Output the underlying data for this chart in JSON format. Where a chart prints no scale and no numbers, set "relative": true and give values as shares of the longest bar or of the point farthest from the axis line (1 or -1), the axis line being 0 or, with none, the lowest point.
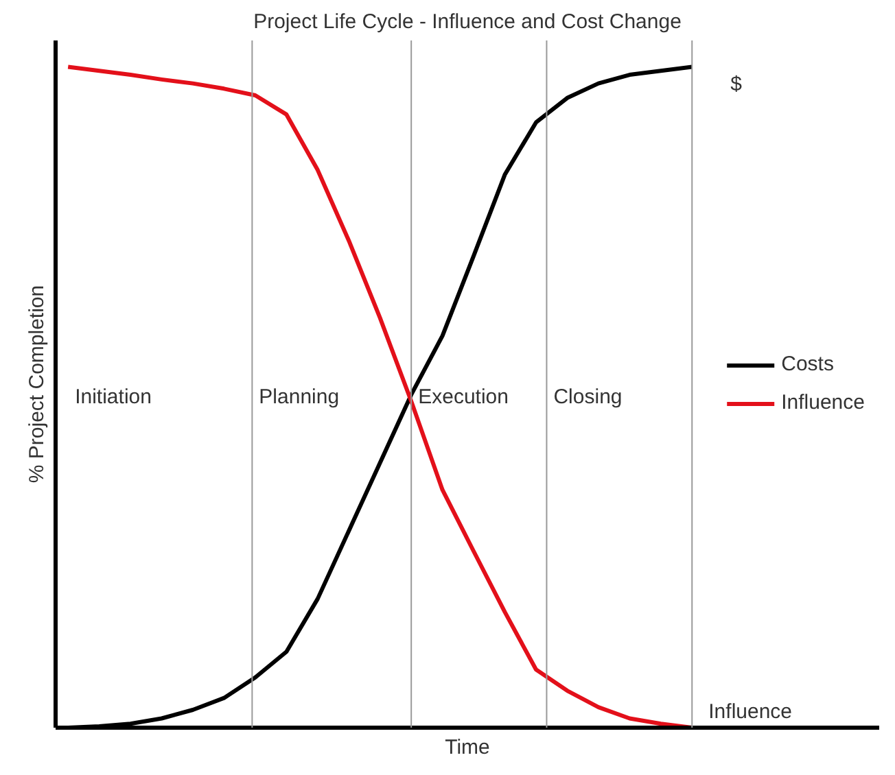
{
  "chart_data": {
    "type": "line",
    "title": "Project Life Cycle - Influence and Cost Change",
    "xlabel": "Time",
    "ylabel": "% Project Completion",
    "relative": true,
    "categories": [
      null,
      null,
      null,
      null,
      null,
      null,
      null,
      null,
      null,
      null,
      null,
      null,
      null,
      null,
      null,
      null,
      null,
      null,
      null,
      null,
      null
    ],
    "series": [
      {
        "name": "Costs",
        "color": "#000000",
        "values": [
          0,
          0.002,
          0.006,
          0.014,
          0.027,
          0.045,
          0.076,
          0.115,
          0.195,
          0.298,
          0.401,
          0.504,
          0.593,
          0.714,
          0.837,
          0.916,
          0.953,
          0.975,
          0.988,
          0.994,
          1.0
        ]
      },
      {
        "name": "Influence",
        "color": "#e3101a",
        "values": [
          1.0,
          0.994,
          0.988,
          0.981,
          0.975,
          0.967,
          0.957,
          0.928,
          0.844,
          0.737,
          0.62,
          0.494,
          0.36,
          0.267,
          0.175,
          0.088,
          0.056,
          0.031,
          0.014,
          0.006,
          0
        ]
      }
    ],
    "annotations": [
      "$",
      "Influence",
      "Initiation",
      "Planning",
      "Execution",
      "Closing"
    ],
    "legend": "right",
    "grid": false,
    "line_style": "solid",
    "marker": "none"
  }
}
